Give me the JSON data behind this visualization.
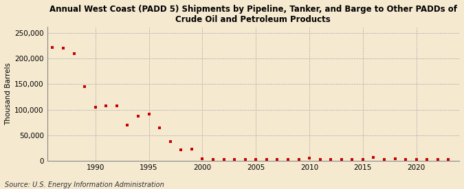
{
  "title": "Annual West Coast (PADD 5) Shipments by Pipeline, Tanker, and Barge to Other PADDs of\nCrude Oil and Petroleum Products",
  "ylabel": "Thousand Barrels",
  "source": "Source: U.S. Energy Information Administration",
  "background_color": "#f5e9d0",
  "plot_bg_color": "#f5e9d0",
  "grid_color": "#aaaaaa",
  "marker_color": "#cc0000",
  "years": [
    1986,
    1987,
    1988,
    1989,
    1990,
    1991,
    1992,
    1993,
    1994,
    1995,
    1996,
    1997,
    1998,
    1999,
    2000,
    2001,
    2002,
    2003,
    2004,
    2005,
    2006,
    2007,
    2008,
    2009,
    2010,
    2011,
    2012,
    2013,
    2014,
    2015,
    2016,
    2017,
    2018,
    2019,
    2020,
    2021,
    2022,
    2023
  ],
  "values": [
    222000,
    221000,
    210000,
    145000,
    105000,
    107000,
    108000,
    70000,
    87000,
    92000,
    65000,
    37000,
    22000,
    23000,
    4000,
    2000,
    2000,
    2000,
    3000,
    3000,
    2000,
    3000,
    3000,
    3000,
    5000,
    3000,
    3000,
    3000,
    3000,
    3000,
    7000,
    3000,
    4000,
    3000,
    3000,
    3000,
    2000,
    2000
  ],
  "ylim": [
    0,
    262500
  ],
  "xlim": [
    1985.5,
    2024
  ],
  "yticks": [
    0,
    50000,
    100000,
    150000,
    200000,
    250000
  ],
  "ytick_labels": [
    "0",
    "50,000",
    "100,000",
    "150,000",
    "200,000",
    "250,000"
  ],
  "xticks": [
    1990,
    1995,
    2000,
    2005,
    2010,
    2015,
    2020
  ],
  "title_fontsize": 8.5,
  "axis_fontsize": 7.5,
  "source_fontsize": 7
}
